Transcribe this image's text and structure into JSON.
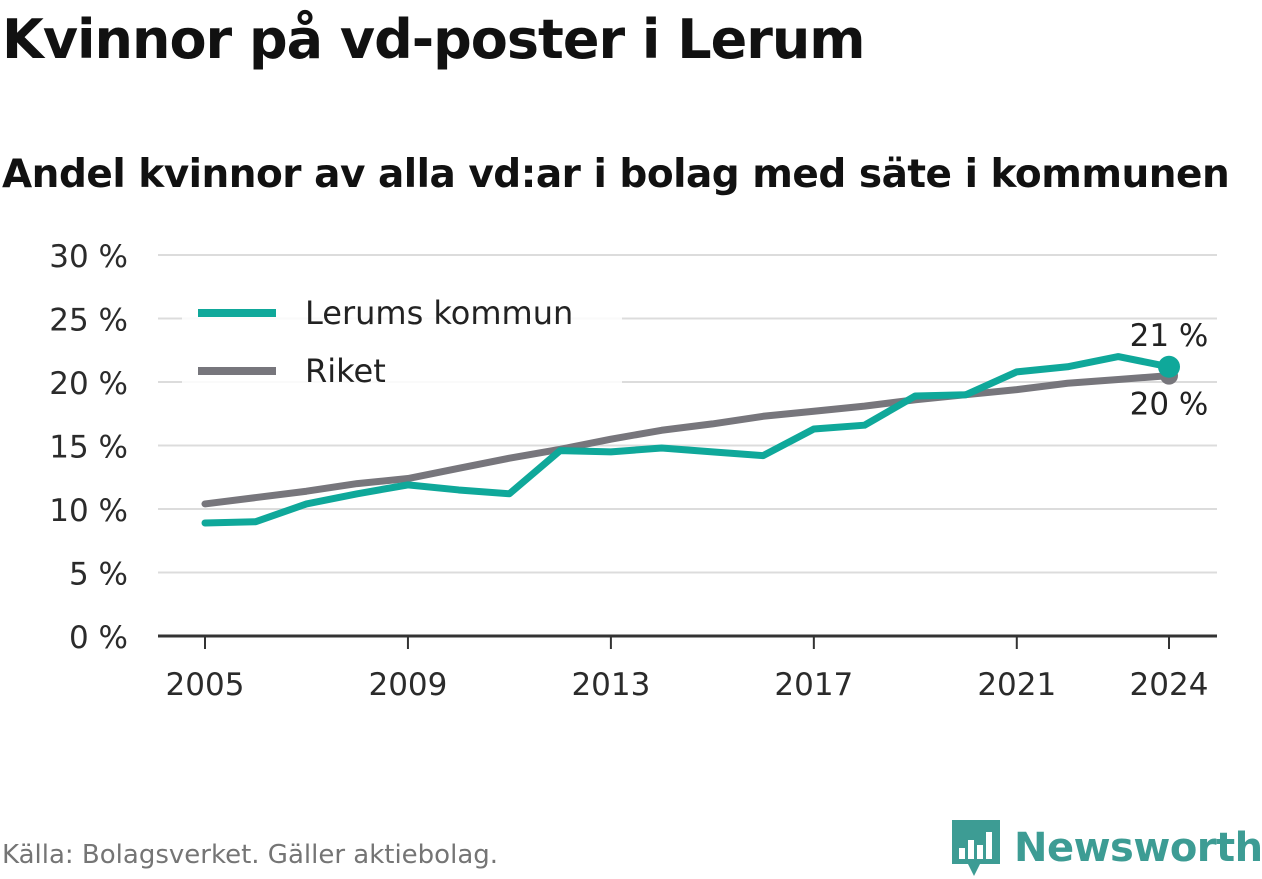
{
  "title": "Kvinnor på vd-poster i Lerum",
  "subtitle": "Andel kvinnor av alla vd:ar i bolag med säte i kommunen",
  "source": "Källa: Bolagsverket. Gäller aktiebolag.",
  "brand": {
    "name": "Newsworthy",
    "logo_icon": "bar-chart-badge-icon"
  },
  "chart_data": {
    "type": "line",
    "x": [
      2005,
      2006,
      2007,
      2008,
      2009,
      2010,
      2011,
      2012,
      2013,
      2014,
      2015,
      2016,
      2017,
      2018,
      2019,
      2020,
      2021,
      2022,
      2023,
      2024
    ],
    "xticks": [
      2005,
      2009,
      2013,
      2017,
      2021,
      2024
    ],
    "xtick_labels": [
      "2005",
      "2009",
      "2013",
      "2017",
      "2021",
      "2024"
    ],
    "ylim": [
      0,
      30
    ],
    "yticks": [
      0,
      5,
      10,
      15,
      20,
      25,
      30
    ],
    "ytick_labels": [
      "0 %",
      "5 %",
      "10 %",
      "15 %",
      "20 %",
      "25 %",
      "30 %"
    ],
    "grid": true,
    "legend_position": "top-left",
    "series": [
      {
        "name": "Lerums kommun",
        "color": "#0fa89a",
        "values": [
          8.9,
          9.0,
          10.4,
          11.2,
          11.9,
          11.5,
          11.2,
          14.6,
          14.5,
          14.8,
          14.5,
          14.2,
          16.3,
          16.6,
          18.9,
          19.0,
          20.8,
          21.2,
          22.0,
          21.2
        ],
        "end_label": "21 %"
      },
      {
        "name": "Riket",
        "color": "#77767c",
        "values": [
          10.4,
          10.9,
          11.4,
          12.0,
          12.4,
          13.2,
          14.0,
          14.7,
          15.5,
          16.2,
          16.7,
          17.3,
          17.7,
          18.1,
          18.6,
          19.0,
          19.4,
          19.9,
          20.2,
          20.5
        ],
        "end_label": "20 %"
      }
    ]
  }
}
